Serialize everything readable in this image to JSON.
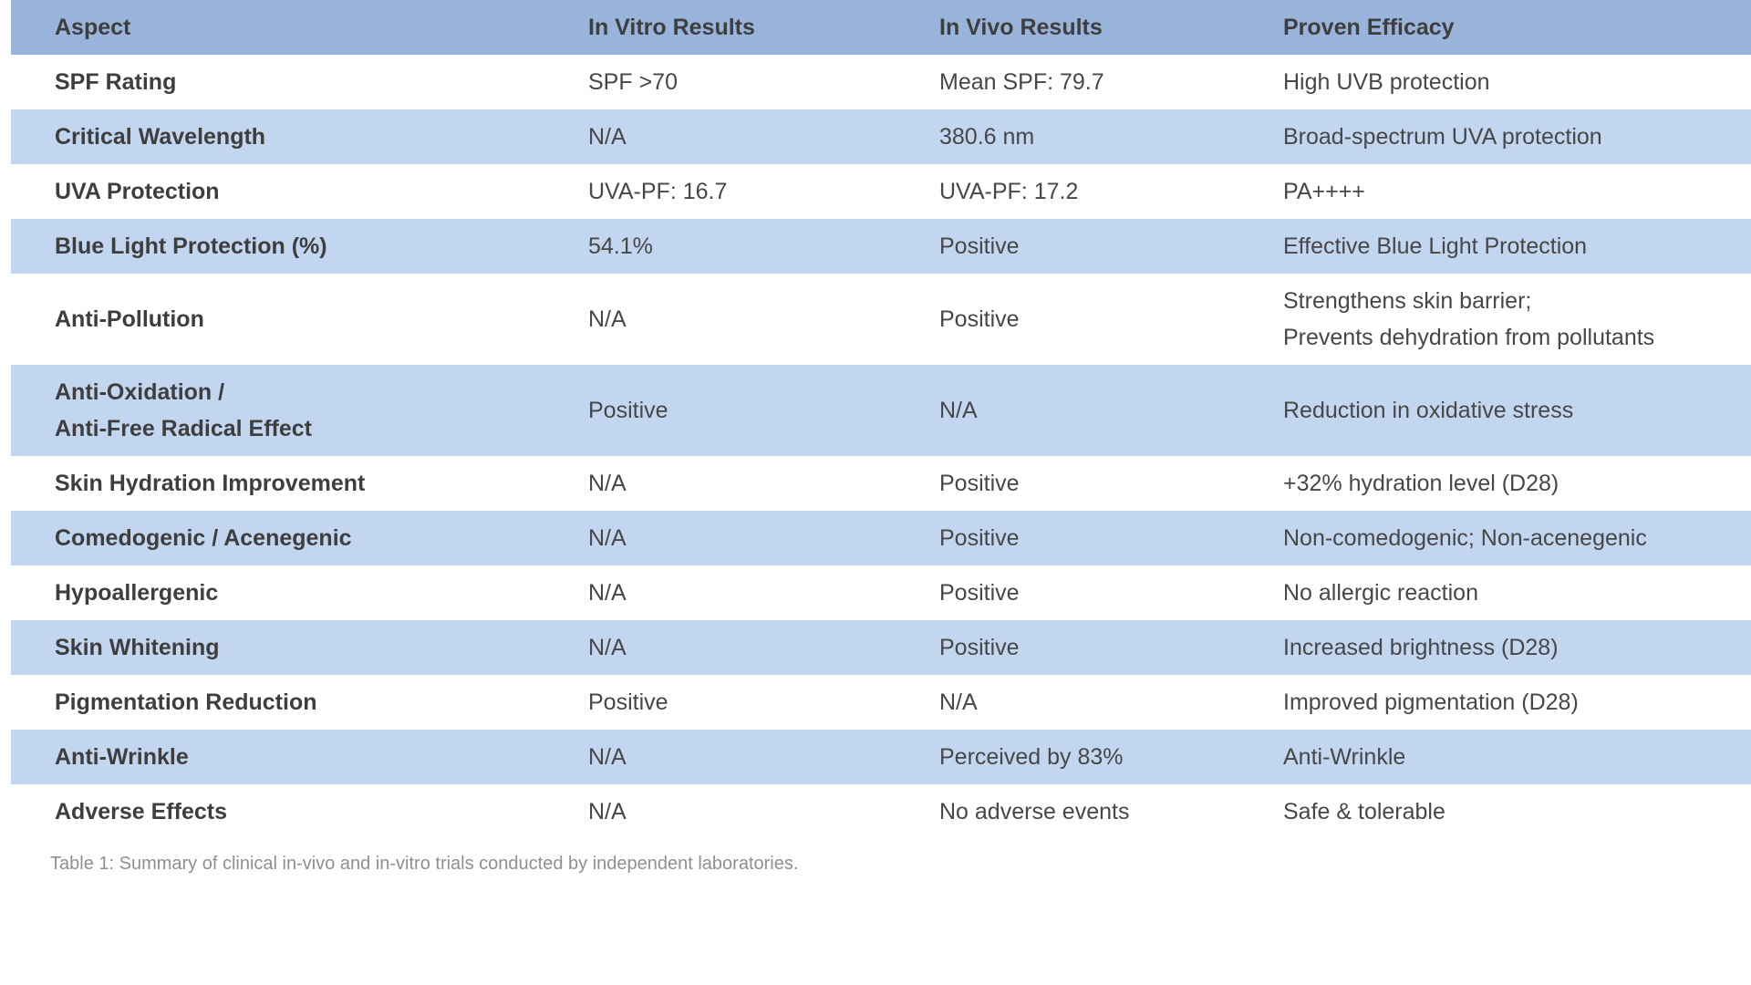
{
  "table": {
    "columns": [
      "Aspect",
      "In Vitro Results",
      "In Vivo Results",
      "Proven Efficacy"
    ],
    "rows": [
      {
        "aspect": "SPF Rating",
        "in_vitro": "SPF >70",
        "in_vivo": "Mean SPF: 79.7",
        "efficacy": "High UVB protection"
      },
      {
        "aspect": "Critical Wavelength",
        "in_vitro": "N/A",
        "in_vivo": "380.6 nm",
        "efficacy": "Broad-spectrum UVA protection"
      },
      {
        "aspect": "UVA Protection",
        "in_vitro": "UVA-PF: 16.7",
        "in_vivo": "UVA-PF: 17.2",
        "efficacy": "PA++++"
      },
      {
        "aspect": "Blue Light Protection (%)",
        "in_vitro": "54.1%",
        "in_vivo": "Positive",
        "efficacy": "Effective Blue Light Protection"
      },
      {
        "aspect": "Anti-Pollution",
        "in_vitro": "N/A",
        "in_vivo": "Positive",
        "efficacy": "Strengthens skin barrier;\nPrevents dehydration from pollutants"
      },
      {
        "aspect": "Anti-Oxidation /\nAnti-Free Radical Effect",
        "in_vitro": "Positive",
        "in_vivo": "N/A",
        "efficacy": "Reduction in oxidative stress"
      },
      {
        "aspect": "Skin Hydration Improvement",
        "in_vitro": "N/A",
        "in_vivo": "Positive",
        "efficacy": "+32% hydration level (D28)"
      },
      {
        "aspect": "Comedogenic / Acenegenic",
        "in_vitro": "N/A",
        "in_vivo": "Positive",
        "efficacy": "Non-comedogenic; Non-acenegenic"
      },
      {
        "aspect": "Hypoallergenic",
        "in_vitro": "N/A",
        "in_vivo": "Positive",
        "efficacy": "No allergic reaction"
      },
      {
        "aspect": "Skin Whitening",
        "in_vitro": "N/A",
        "in_vivo": "Positive",
        "efficacy": "Increased brightness (D28)"
      },
      {
        "aspect": "Pigmentation Reduction",
        "in_vitro": "Positive",
        "in_vivo": "N/A",
        "efficacy": "Improved pigmentation (D28)"
      },
      {
        "aspect": "Anti-Wrinkle",
        "in_vitro": "N/A",
        "in_vivo": "Perceived by 83%",
        "efficacy": "Anti-Wrinkle"
      },
      {
        "aspect": "Adverse Effects",
        "in_vitro": "N/A",
        "in_vivo": "No adverse events",
        "efficacy": "Safe & tolerable"
      }
    ],
    "caption": "Table 1: Summary of clinical in-vivo and in-vitro trials conducted by independent laboratories."
  },
  "colors": {
    "header_bg": "#99b4db",
    "band_bg": "#c3d6f0",
    "text_bold": "#3e3e3e",
    "text_regular": "#474747",
    "caption": "#8f8f8f"
  }
}
